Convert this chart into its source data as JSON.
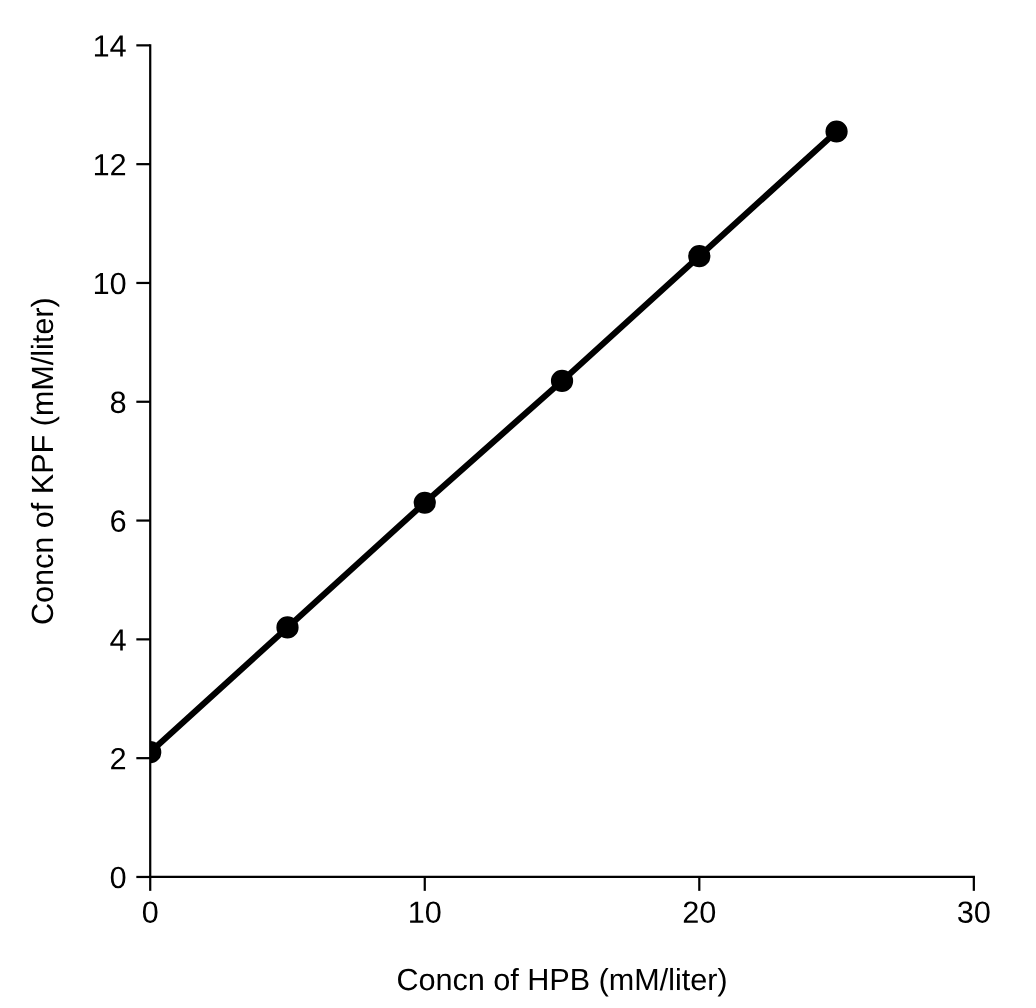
{
  "chart_data": {
    "type": "line",
    "xlabel": "Concn of HPB (mM/liter)",
    "ylabel": "Concn of KPF (mM/liter)",
    "x": [
      0,
      5,
      10,
      15,
      20,
      25
    ],
    "series": [
      {
        "color": "#000000",
        "values": [
          2.1,
          4.2,
          6.3,
          8.35,
          10.45,
          12.55
        ]
      }
    ],
    "xlim": [
      0,
      30
    ],
    "xticks": [
      0,
      10,
      20,
      30
    ],
    "ylim": [
      0,
      14
    ],
    "yticks": [
      0,
      2,
      4,
      6,
      8,
      10,
      12,
      14
    ],
    "marker": "circle",
    "line_style": "solid",
    "grid": false,
    "legend": false
  }
}
